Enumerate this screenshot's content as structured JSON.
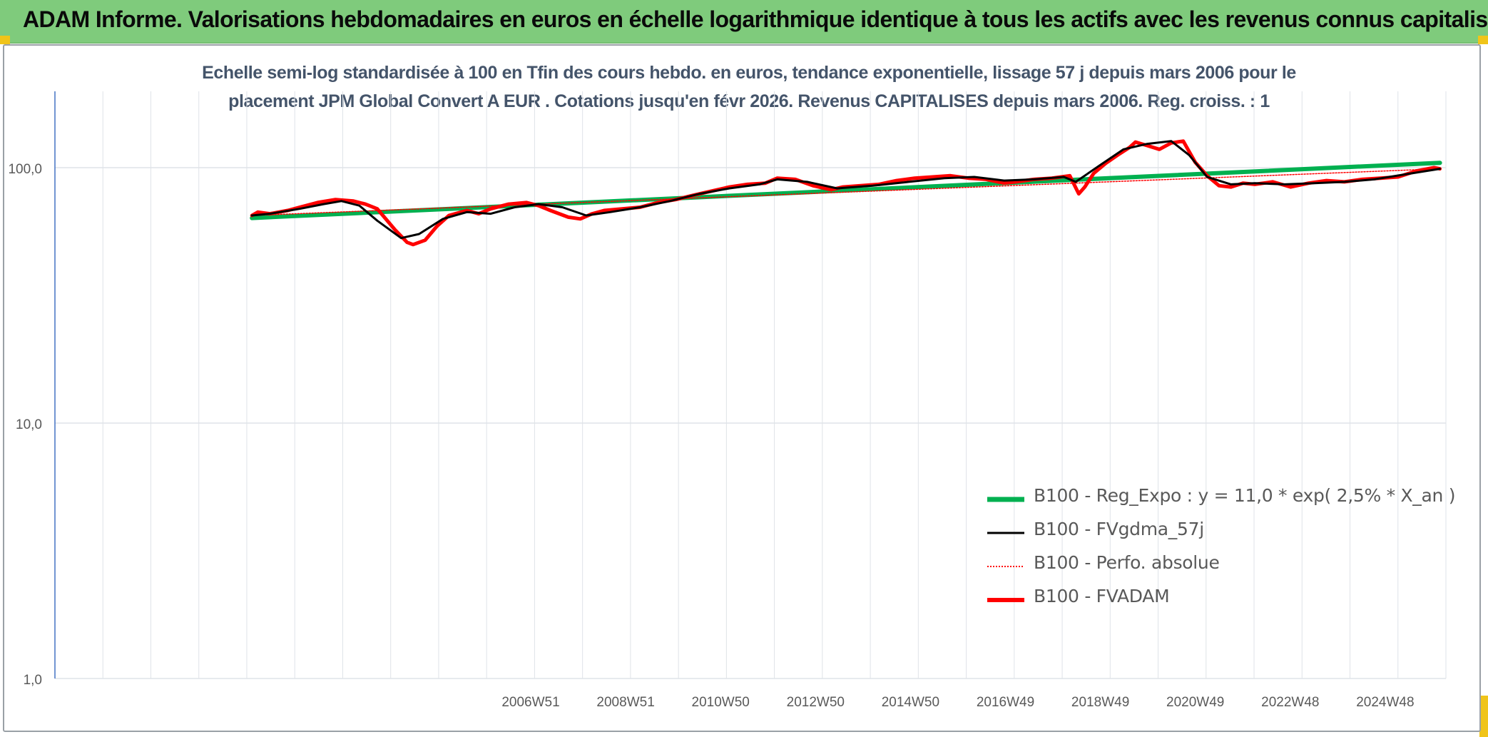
{
  "banner": {
    "title": "ADAM Informe. Valorisations hebdomadaires en euros en échelle logarithmique identique à tous les actifs avec les revenus connus capitalisés",
    "background": "#7fcb7c"
  },
  "chart_data": {
    "type": "line",
    "title_line1": "Echelle semi-log standardisée à 100 en Tfin des cours hebdo. en euros, tendance exponentielle, lissage 57 j depuis mars 2006 pour le",
    "title_line2": "placement JPM Global Convert A EUR . Cotations jusqu'en févr 2026. Revenus CAPITALISES depuis mars 2006. Reg. croiss. : 1",
    "xlabel": "",
    "ylabel": "",
    "y_scale": "log",
    "ylim": [
      1,
      200
    ],
    "y_ticks": [
      "1,0",
      "10,0",
      "100,0"
    ],
    "x_ticks": [
      "2006W51",
      "2008W51",
      "2010W50",
      "2012W50",
      "2014W50",
      "2016W49",
      "2018W49",
      "2020W49",
      "2022W48",
      "2024W48"
    ],
    "xlim": [
      2002.9,
      2026.2
    ],
    "grid": true,
    "legend_position": "bottom-right",
    "series": [
      {
        "name": "B100 - Reg_Expo : y = 11,0 * exp( 2,5% *  X_an )",
        "color": "#00b050",
        "style": "solid-thick",
        "x": [
          2006.2,
          2026.1
        ],
        "y": [
          63.5,
          104.5
        ]
      },
      {
        "name": "B100 - FVgdma_57j",
        "color": "#000000",
        "style": "solid",
        "x": [
          2006.2,
          2006.5,
          2007.0,
          2007.4,
          2007.7,
          2008.0,
          2008.3,
          2008.7,
          2009.0,
          2009.4,
          2009.8,
          2010.2,
          2010.6,
          2011.0,
          2011.4,
          2011.8,
          2012.2,
          2012.7,
          2013.2,
          2013.7,
          2014.2,
          2014.7,
          2015.0,
          2015.5,
          2016.0,
          2016.6,
          2017.2,
          2017.8,
          2018.3,
          2018.8,
          2019.3,
          2019.8,
          2020.0,
          2020.4,
          2020.8,
          2021.2,
          2021.6,
          2021.9,
          2022.2,
          2022.6,
          2023.0,
          2023.5,
          2024.0,
          2024.5,
          2025.0,
          2025.5,
          2026.1
        ],
        "y": [
          65,
          66,
          69,
          72,
          74,
          71,
          62,
          53,
          55,
          63,
          67,
          66,
          70,
          72,
          70,
          65,
          67,
          70,
          74,
          79,
          83,
          86,
          90,
          88,
          83,
          85,
          88,
          91,
          92,
          89,
          90,
          92,
          88,
          102,
          118,
          124,
          127,
          112,
          92,
          86,
          87,
          86,
          87,
          88,
          90,
          94,
          99
        ]
      },
      {
        "name": "B100 - Perfo. absolue",
        "color": "#ff0000",
        "style": "dotted",
        "x": [
          2006.2,
          2026.1
        ],
        "y": [
          65,
          99
        ]
      },
      {
        "name": "B100 - FVADAM",
        "color": "#ff0000",
        "style": "solid-thick",
        "x": [
          2006.2,
          2006.3,
          2006.5,
          2006.8,
          2007.0,
          2007.3,
          2007.6,
          2007.9,
          2008.1,
          2008.3,
          2008.6,
          2008.8,
          2008.9,
          2009.1,
          2009.3,
          2009.5,
          2009.8,
          2010.0,
          2010.2,
          2010.5,
          2010.8,
          2011.0,
          2011.2,
          2011.5,
          2011.7,
          2011.9,
          2012.1,
          2012.4,
          2012.7,
          2013.0,
          2013.3,
          2013.6,
          2013.9,
          2014.2,
          2014.5,
          2014.8,
          2015.0,
          2015.3,
          2015.6,
          2015.9,
          2016.1,
          2016.4,
          2016.7,
          2017.0,
          2017.3,
          2017.6,
          2017.9,
          2018.2,
          2018.5,
          2018.8,
          2019.0,
          2019.3,
          2019.6,
          2019.9,
          2020.05,
          2020.15,
          2020.3,
          2020.5,
          2020.7,
          2020.9,
          2021.0,
          2021.2,
          2021.4,
          2021.6,
          2021.8,
          2022.0,
          2022.2,
          2022.4,
          2022.6,
          2022.8,
          2023.0,
          2023.3,
          2023.6,
          2023.9,
          2024.2,
          2024.5,
          2024.8,
          2025.1,
          2025.4,
          2025.7,
          2026.0,
          2026.1
        ],
        "y": [
          65,
          67,
          66,
          68,
          70,
          73,
          75,
          74,
          72,
          69,
          57,
          51,
          50,
          52,
          59,
          65,
          68,
          66,
          69,
          72,
          73,
          71,
          68,
          64,
          63,
          66,
          68,
          69,
          70,
          73,
          75,
          78,
          81,
          84,
          86,
          87,
          91,
          90,
          85,
          82,
          84,
          85,
          86,
          89,
          91,
          92,
          93,
          91,
          90,
          87,
          88,
          90,
          91,
          93,
          79,
          84,
          95,
          104,
          112,
          120,
          126,
          122,
          118,
          125,
          127,
          105,
          93,
          85,
          84,
          87,
          86,
          88,
          84,
          87,
          89,
          88,
          90,
          91,
          92,
          97,
          100,
          99
        ]
      }
    ]
  }
}
